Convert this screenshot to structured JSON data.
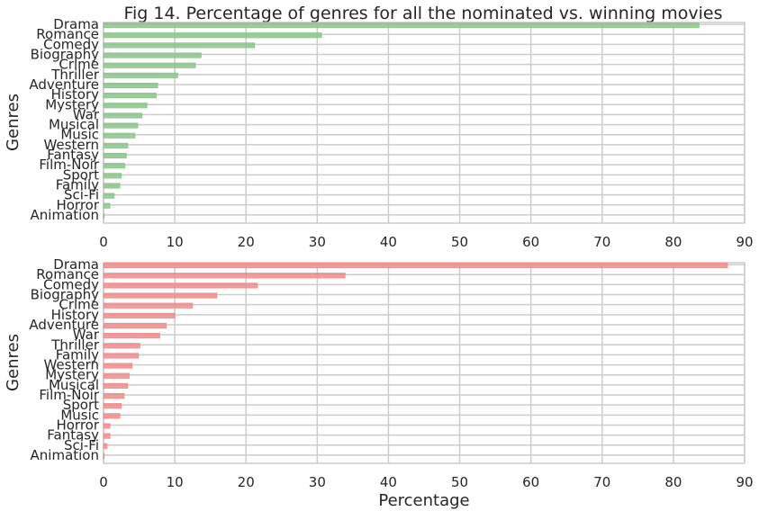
{
  "chart_data": [
    {
      "type": "bar",
      "orientation": "horizontal",
      "title": "Fig 14. Percentage of genres for all the nominated vs. winning movies",
      "xlabel": "",
      "ylabel": "Genres",
      "xlim": [
        0,
        90
      ],
      "xticks": [
        "0",
        "10",
        "20",
        "30",
        "40",
        "50",
        "60",
        "70",
        "80",
        "90"
      ],
      "grid": true,
      "color": "#8cc48c",
      "categories": [
        "Drama",
        "Romance",
        "Comedy",
        "Biography",
        "Crime",
        "Thriller",
        "Adventure",
        "History",
        "Mystery",
        "War",
        "Musical",
        "Music",
        "Western",
        "Fantasy",
        "Film-Noir",
        "Sport",
        "Family",
        "Sci-Fi",
        "Horror",
        "Animation"
      ],
      "values": [
        83.6,
        30.6,
        21.2,
        13.7,
        12.9,
        10.4,
        7.6,
        7.4,
        6.1,
        5.4,
        4.8,
        4.4,
        3.4,
        3.2,
        3.0,
        2.5,
        2.3,
        1.5,
        0.9,
        0.1
      ]
    },
    {
      "type": "bar",
      "orientation": "horizontal",
      "title": "",
      "xlabel": "Percentage",
      "ylabel": "Genres",
      "xlim": [
        0,
        90
      ],
      "xticks": [
        "0",
        "10",
        "20",
        "30",
        "40",
        "50",
        "60",
        "70",
        "80",
        "90"
      ],
      "grid": true,
      "color": "#f08c8c",
      "categories": [
        "Drama",
        "Romance",
        "Comedy",
        "Biography",
        "Crime",
        "History",
        "Adventure",
        "War",
        "Thriller",
        "Family",
        "Western",
        "Mystery",
        "Musical",
        "Film-Noir",
        "Sport",
        "Music",
        "Horror",
        "Fantasy",
        "Sci-Fi",
        "Animation"
      ],
      "values": [
        87.6,
        33.9,
        21.6,
        15.9,
        12.5,
        10.0,
        8.8,
        7.9,
        5.1,
        4.9,
        4.0,
        3.6,
        3.4,
        2.9,
        2.5,
        2.3,
        0.9,
        0.9,
        0.5,
        0.1
      ]
    }
  ]
}
